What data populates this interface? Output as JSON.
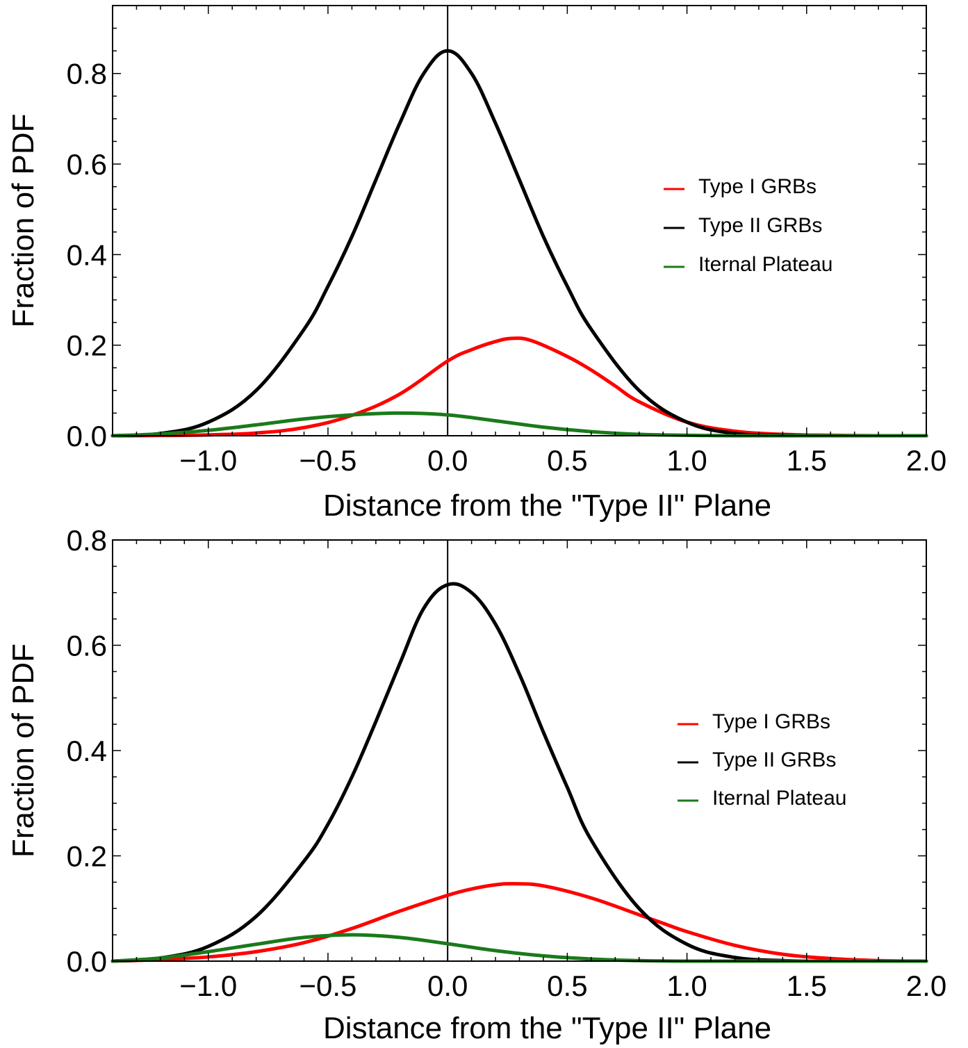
{
  "chart_data": [
    {
      "type": "line",
      "title": "",
      "xlabel": "Distance from the \"Type II\" Plane",
      "ylabel": "Fraction of PDF",
      "xlim": [
        -1.4,
        2.0
      ],
      "ylim": [
        0,
        0.95
      ],
      "xticks": [
        -1.0,
        -0.5,
        0.0,
        0.5,
        1.0,
        1.5,
        2.0
      ],
      "xtick_labels": [
        "−1.0",
        "−0.5",
        "0.0",
        "0.5",
        "1.0",
        "1.5",
        "2.0"
      ],
      "yticks": [
        0.0,
        0.2,
        0.4,
        0.6,
        0.8
      ],
      "ytick_labels": [
        "0.0",
        "0.2",
        "0.4",
        "0.6",
        "0.8"
      ],
      "vertical_line_x": 0.0,
      "legend_position": "right",
      "series": [
        {
          "name": "Type I GRBs",
          "color": "#ff0000",
          "x": [
            -1.4,
            -1.2,
            -1.0,
            -0.8,
            -0.6,
            -0.4,
            -0.2,
            0.0,
            0.1,
            0.2,
            0.27,
            0.35,
            0.5,
            0.6,
            0.7,
            0.8,
            1.0,
            1.2,
            1.4,
            1.6,
            1.8,
            2.0
          ],
          "y": [
            0.0,
            0.0005,
            0.002,
            0.006,
            0.018,
            0.045,
            0.092,
            0.165,
            0.19,
            0.208,
            0.215,
            0.21,
            0.175,
            0.145,
            0.11,
            0.075,
            0.03,
            0.01,
            0.003,
            0.001,
            0.0,
            0.0
          ]
        },
        {
          "name": "Type II GRBs",
          "color": "#000000",
          "x": [
            -1.4,
            -1.2,
            -1.0,
            -0.8,
            -0.6,
            -0.5,
            -0.4,
            -0.3,
            -0.2,
            -0.1,
            0.0,
            0.1,
            0.2,
            0.3,
            0.4,
            0.5,
            0.6,
            0.8,
            1.0,
            1.2,
            1.4,
            1.6,
            2.0
          ],
          "y": [
            0.0,
            0.005,
            0.03,
            0.1,
            0.235,
            0.33,
            0.44,
            0.565,
            0.69,
            0.8,
            0.85,
            0.8,
            0.69,
            0.565,
            0.44,
            0.33,
            0.235,
            0.1,
            0.03,
            0.005,
            0.001,
            0.0,
            0.0
          ]
        },
        {
          "name": "Iternal Plateau",
          "color": "#1a7a1a",
          "x": [
            -1.4,
            -1.2,
            -1.0,
            -0.8,
            -0.6,
            -0.4,
            -0.2,
            0.0,
            0.2,
            0.4,
            0.6,
            0.8,
            1.0,
            1.2,
            1.4,
            2.0
          ],
          "y": [
            0.0,
            0.004,
            0.012,
            0.024,
            0.037,
            0.046,
            0.05,
            0.046,
            0.033,
            0.019,
            0.009,
            0.003,
            0.001,
            0.0,
            0.0,
            0.0
          ]
        }
      ]
    },
    {
      "type": "line",
      "title": "",
      "xlabel": "Distance from the \"Type II\" Plane",
      "ylabel": "Fraction of PDF",
      "xlim": [
        -1.4,
        2.0
      ],
      "ylim": [
        0,
        0.8
      ],
      "xticks": [
        -1.0,
        -0.5,
        0.0,
        0.5,
        1.0,
        1.5,
        2.0
      ],
      "xtick_labels": [
        "−1.0",
        "−0.5",
        "0.0",
        "0.5",
        "1.0",
        "1.5",
        "2.0"
      ],
      "yticks": [
        0.0,
        0.2,
        0.4,
        0.6,
        0.8
      ],
      "ytick_labels": [
        "0.0",
        "0.2",
        "0.4",
        "0.6",
        "0.8"
      ],
      "vertical_line_x": 0.0,
      "legend_position": "right",
      "series": [
        {
          "name": "Type I GRBs",
          "color": "#ff0000",
          "x": [
            -1.4,
            -1.2,
            -1.0,
            -0.8,
            -0.6,
            -0.4,
            -0.2,
            0.0,
            0.1,
            0.2,
            0.28,
            0.4,
            0.6,
            0.8,
            0.9,
            1.0,
            1.2,
            1.4,
            1.6,
            1.8,
            2.0
          ],
          "y": [
            0.0,
            0.003,
            0.008,
            0.018,
            0.035,
            0.062,
            0.095,
            0.125,
            0.137,
            0.145,
            0.147,
            0.143,
            0.12,
            0.088,
            0.072,
            0.056,
            0.03,
            0.013,
            0.005,
            0.001,
            0.0
          ]
        },
        {
          "name": "Type II GRBs",
          "color": "#000000",
          "x": [
            -1.4,
            -1.2,
            -1.0,
            -0.8,
            -0.6,
            -0.5,
            -0.4,
            -0.3,
            -0.2,
            -0.1,
            0.0,
            0.1,
            0.2,
            0.3,
            0.4,
            0.5,
            0.6,
            0.8,
            1.0,
            1.2,
            1.4,
            1.6,
            2.0
          ],
          "y": [
            0.0,
            0.006,
            0.028,
            0.085,
            0.19,
            0.26,
            0.35,
            0.455,
            0.565,
            0.67,
            0.715,
            0.7,
            0.64,
            0.545,
            0.435,
            0.33,
            0.23,
            0.1,
            0.032,
            0.007,
            0.001,
            0.0,
            0.0
          ]
        },
        {
          "name": "Iternal Plateau",
          "color": "#1a7a1a",
          "x": [
            -1.4,
            -1.2,
            -1.0,
            -0.8,
            -0.6,
            -0.4,
            -0.2,
            0.0,
            0.2,
            0.4,
            0.6,
            0.8,
            1.0,
            1.2,
            2.0
          ],
          "y": [
            0.0,
            0.006,
            0.018,
            0.032,
            0.045,
            0.05,
            0.045,
            0.033,
            0.02,
            0.01,
            0.004,
            0.001,
            0.0,
            0.0,
            0.0
          ]
        }
      ]
    }
  ]
}
